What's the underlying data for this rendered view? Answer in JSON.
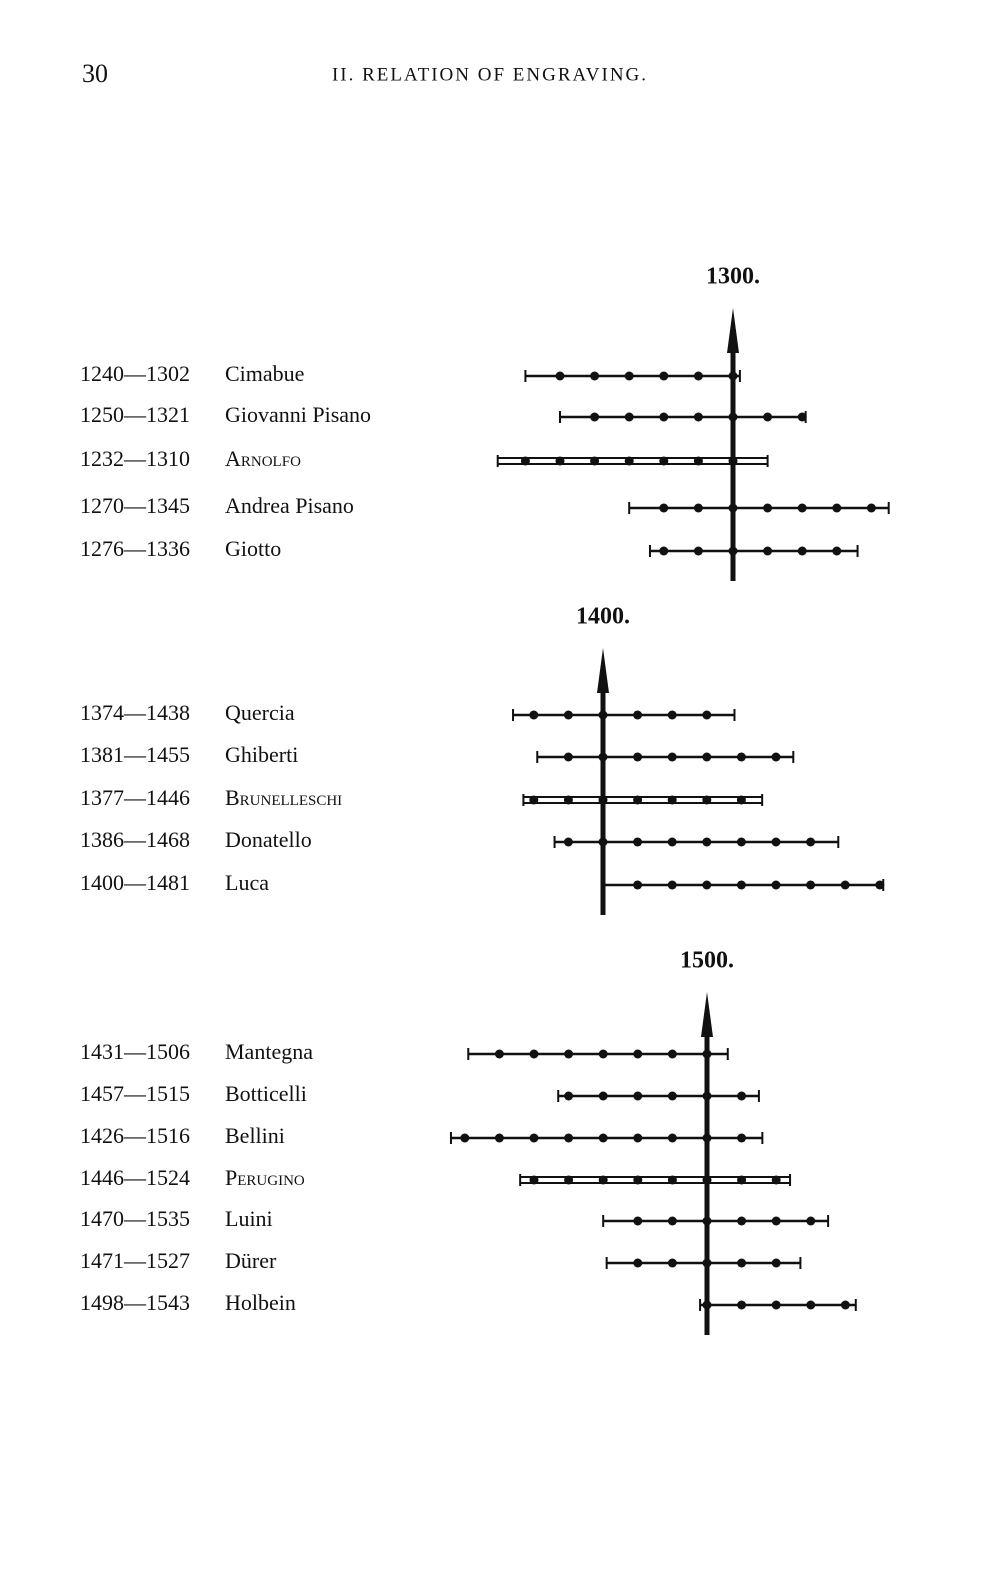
{
  "header": {
    "page_number": "30",
    "running_title": "II. RELATION OF ENGRAVING."
  },
  "groups": [
    {
      "marker": {
        "value": 1300,
        "label": "1300."
      },
      "rows": [
        {
          "dates": "1240—1302",
          "name": "Cimabue",
          "born": 1240,
          "died": 1302
        },
        {
          "dates": "1250—1321",
          "name": "Giovanni Pisano",
          "born": 1250,
          "died": 1321
        },
        {
          "dates": "1232—1310",
          "name": "Arnolfo",
          "born": 1232,
          "died": 1310,
          "style": "double"
        },
        {
          "dates": "1270—1345",
          "name": "Andrea Pisano",
          "born": 1270,
          "died": 1345
        },
        {
          "dates": "1276—1336",
          "name": "Giotto",
          "born": 1276,
          "died": 1336
        }
      ]
    },
    {
      "marker": {
        "value": 1400,
        "label": "1400."
      },
      "rows": [
        {
          "dates": "1374—1438",
          "name": "Quercia",
          "born": 1374,
          "died": 1438
        },
        {
          "dates": "1381—1455",
          "name": "Ghiberti",
          "born": 1381,
          "died": 1455
        },
        {
          "dates": "1377—1446",
          "name": "Brunelleschi",
          "born": 1377,
          "died": 1446,
          "style": "double"
        },
        {
          "dates": "1386—1468",
          "name": "Donatello",
          "born": 1386,
          "died": 1468
        },
        {
          "dates": "1400—1481",
          "name": "Luca",
          "born": 1400,
          "died": 1481
        }
      ]
    },
    {
      "marker": {
        "value": 1500,
        "label": "1500."
      },
      "rows": [
        {
          "dates": "1431—1506",
          "name": "Mantegna",
          "born": 1431,
          "died": 1506
        },
        {
          "dates": "1457—1515",
          "name": "Botticelli",
          "born": 1457,
          "died": 1515
        },
        {
          "dates": "1426—1516",
          "name": "Bellini",
          "born": 1426,
          "died": 1516
        },
        {
          "dates": "1446—1524",
          "name": "Perugino",
          "born": 1446,
          "died": 1524,
          "style": "double"
        },
        {
          "dates": "1470—1535",
          "name": "Luini",
          "born": 1470,
          "died": 1535
        },
        {
          "dates": "1471—1527",
          "name": "Dürer",
          "born": 1471,
          "died": 1527
        },
        {
          "dates": "1498—1543",
          "name": "Holbein",
          "born": 1498,
          "died": 1543
        }
      ]
    }
  ]
}
